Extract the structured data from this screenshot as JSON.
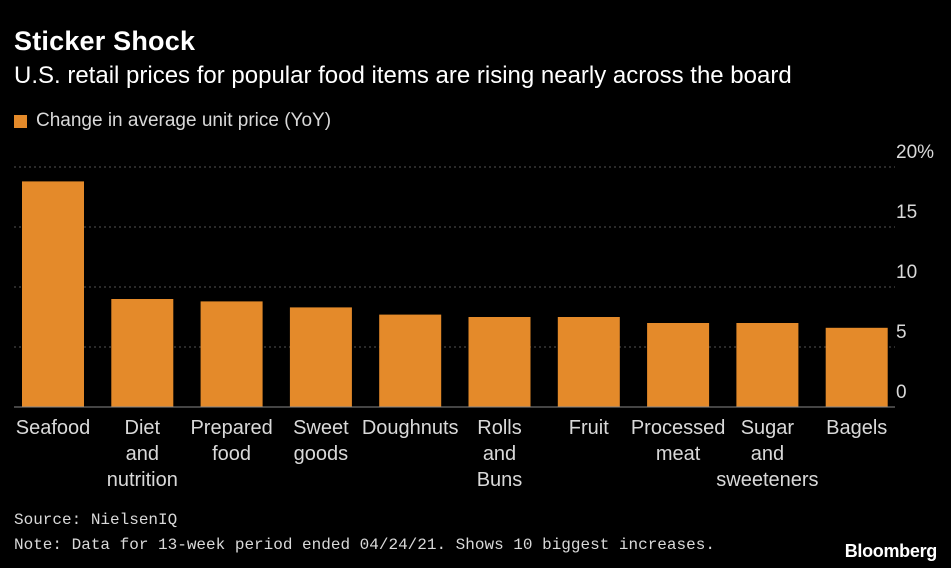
{
  "header": {
    "title": "Sticker Shock",
    "subtitle": "U.S. retail prices for popular food items are rising nearly across the board"
  },
  "colors": {
    "bar": "#E48A2A",
    "grid": "#555555",
    "background": "#000000"
  },
  "footer": {
    "source": "Source: NielsenIQ",
    "note": "Note: Data for 13-week period ended 04/24/21. Shows 10 biggest increases.",
    "brand": "Bloomberg"
  },
  "chart_data": {
    "type": "bar",
    "title": "Sticker Shock",
    "subtitle": "U.S. retail prices for popular food items are rising nearly across the board",
    "legend": [
      "Change in average unit price (YoY)"
    ],
    "legend_position": "top-left",
    "categories": [
      [
        "Seafood"
      ],
      [
        "Diet",
        "and",
        "nutrition"
      ],
      [
        "Prepared",
        "food"
      ],
      [
        "Sweet",
        "goods"
      ],
      [
        "Doughnuts"
      ],
      [
        "Rolls",
        "and",
        "Buns"
      ],
      [
        "Fruit"
      ],
      [
        "Processed",
        "meat"
      ],
      [
        "Sugar",
        "and",
        "sweeteners"
      ],
      [
        "Bagels"
      ]
    ],
    "series": [
      {
        "name": "Change in average unit price (YoY)",
        "values": [
          18.8,
          9.0,
          8.8,
          8.3,
          7.7,
          7.5,
          7.5,
          7.0,
          7.0,
          6.6
        ]
      }
    ],
    "ylim": [
      0,
      20
    ],
    "yticks": [
      "0",
      "5",
      "10",
      "15",
      "20%"
    ],
    "ytick_values": [
      0,
      5,
      10,
      15,
      20
    ],
    "xlabel": "",
    "ylabel": "",
    "grid": true
  }
}
